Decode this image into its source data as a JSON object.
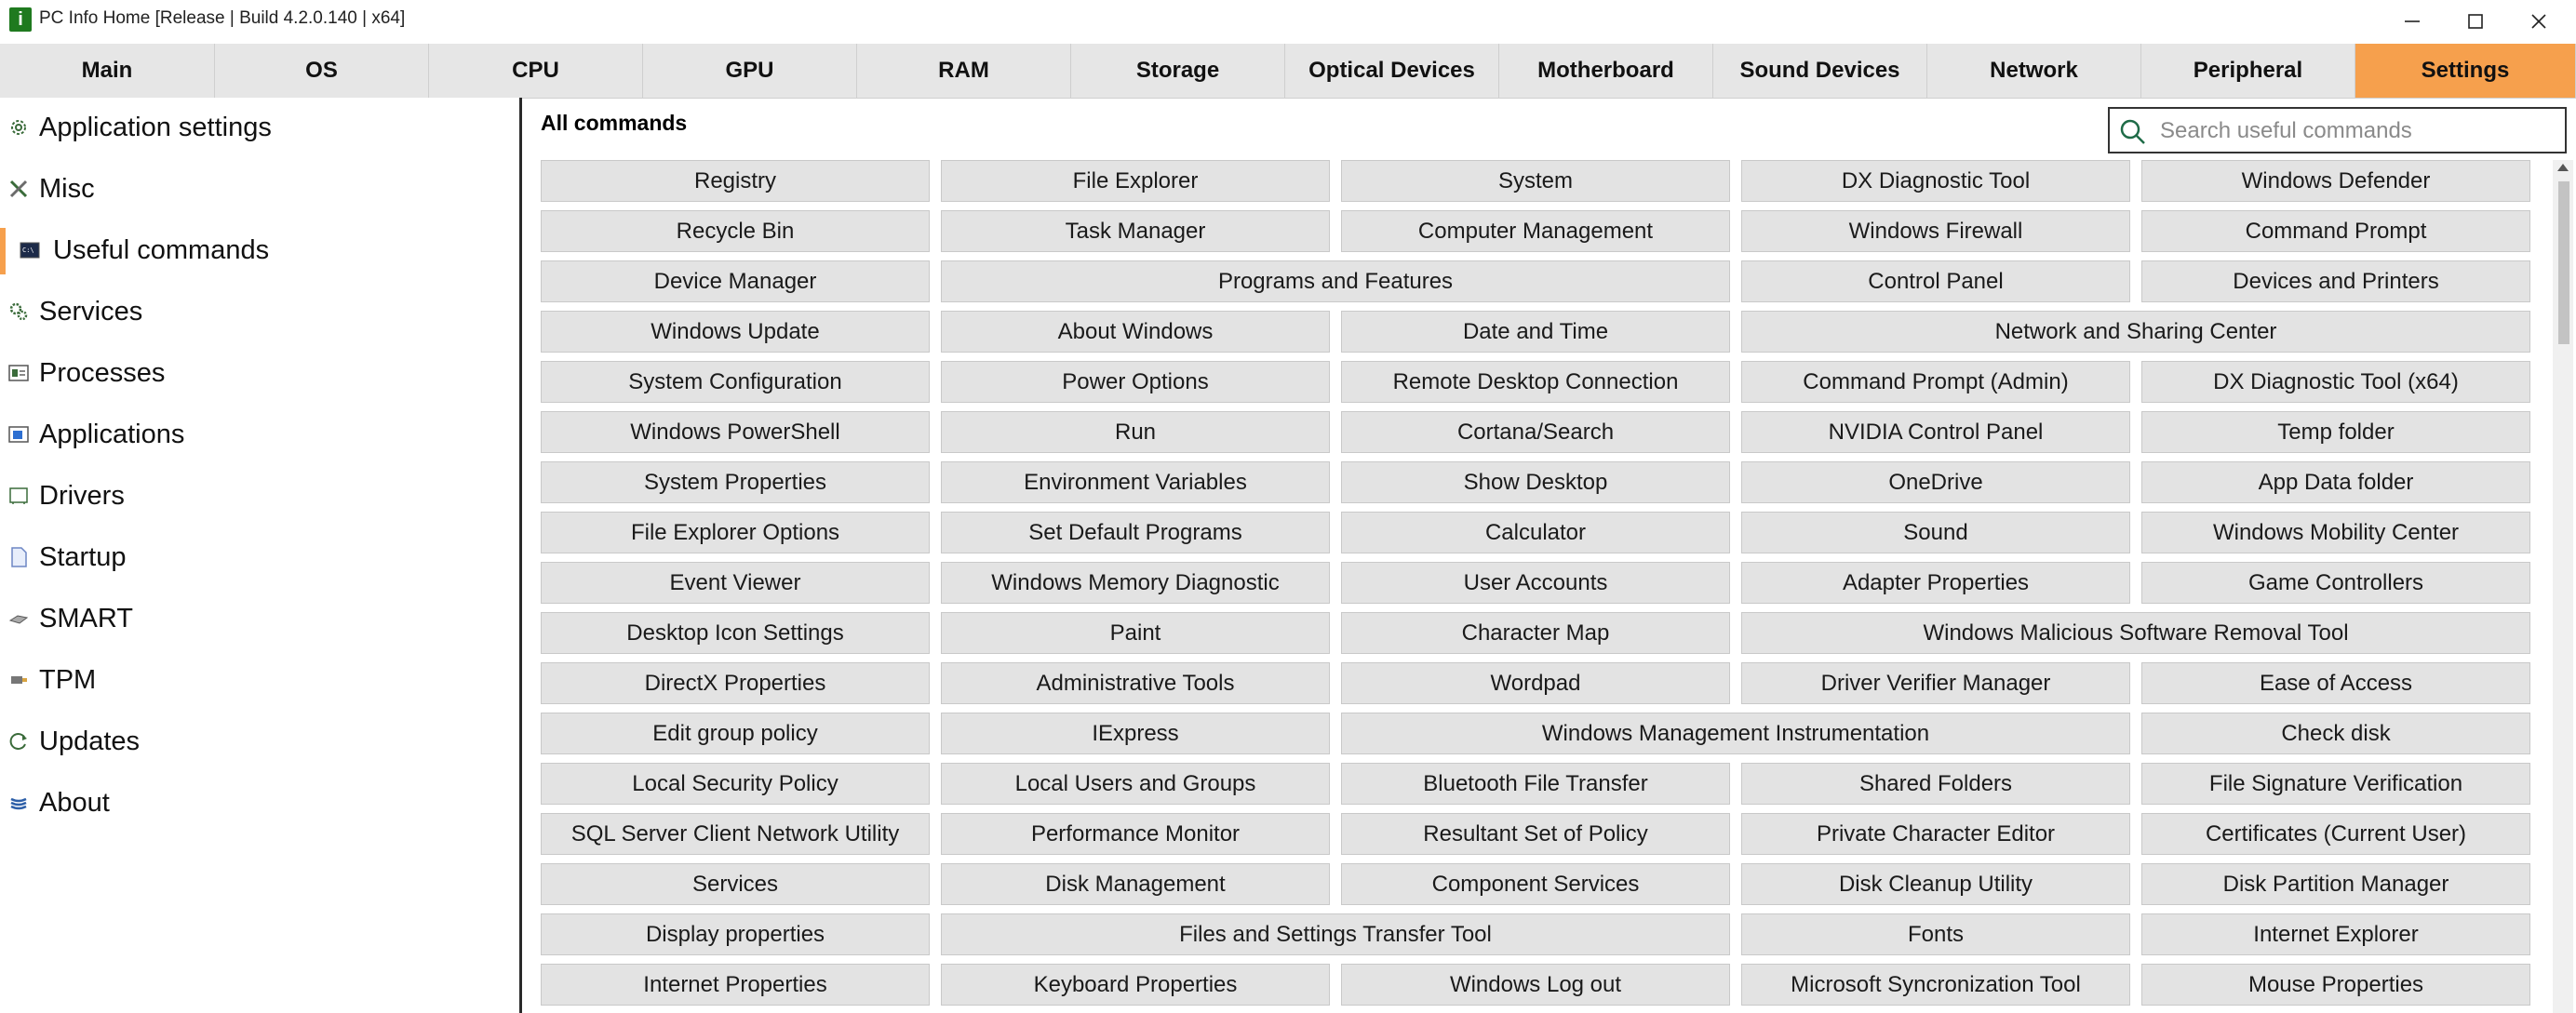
{
  "window": {
    "title": "PC Info Home [Release | Build 4.2.0.140 | x64]",
    "app_icon_letter": "i",
    "controls": [
      "minimize",
      "maximize",
      "close"
    ]
  },
  "tabs": [
    {
      "label": "Main"
    },
    {
      "label": "OS"
    },
    {
      "label": "CPU"
    },
    {
      "label": "GPU"
    },
    {
      "label": "RAM"
    },
    {
      "label": "Storage"
    },
    {
      "label": "Optical Devices"
    },
    {
      "label": "Motherboard"
    },
    {
      "label": "Sound Devices"
    },
    {
      "label": "Network"
    },
    {
      "label": "Peripheral"
    },
    {
      "label": "Settings",
      "active": true
    }
  ],
  "sidebar": {
    "items": [
      {
        "label": "Application settings",
        "icon": "gear-icon"
      },
      {
        "label": "Misc",
        "icon": "tools-icon"
      },
      {
        "label": "Useful commands",
        "icon": "terminal-icon",
        "active": true
      },
      {
        "label": "Services",
        "icon": "services-gear-icon"
      },
      {
        "label": "Processes",
        "icon": "processes-icon"
      },
      {
        "label": "Applications",
        "icon": "application-window-icon"
      },
      {
        "label": "Drivers",
        "icon": "driver-icon"
      },
      {
        "label": "Startup",
        "icon": "startup-document-icon"
      },
      {
        "label": "SMART",
        "icon": "disk-drive-icon"
      },
      {
        "label": "TPM",
        "icon": "chip-icon"
      },
      {
        "label": "Updates",
        "icon": "refresh-icon"
      },
      {
        "label": "About",
        "icon": "about-stack-icon"
      }
    ]
  },
  "main": {
    "section_title": "All commands",
    "search_placeholder": "Search useful commands",
    "commands": [
      {
        "label": "Registry"
      },
      {
        "label": "File Explorer"
      },
      {
        "label": "System"
      },
      {
        "label": "DX Diagnostic Tool"
      },
      {
        "label": "Windows Defender"
      },
      {
        "label": "Recycle Bin"
      },
      {
        "label": "Task Manager"
      },
      {
        "label": "Computer Management"
      },
      {
        "label": "Windows Firewall"
      },
      {
        "label": "Command Prompt"
      },
      {
        "label": "Device Manager"
      },
      {
        "label": "Programs and Features",
        "wide": true
      },
      {
        "label": "Control Panel"
      },
      {
        "label": "Devices and Printers"
      },
      {
        "label": "Windows Update"
      },
      {
        "label": "About Windows"
      },
      {
        "label": "Date and Time"
      },
      {
        "label": "Network and Sharing Center",
        "wide": true
      },
      {
        "label": "System Configuration"
      },
      {
        "label": "Power Options"
      },
      {
        "label": "Remote Desktop Connection"
      },
      {
        "label": "Command Prompt (Admin)"
      },
      {
        "label": "DX Diagnostic Tool (x64)"
      },
      {
        "label": "Windows PowerShell"
      },
      {
        "label": "Run"
      },
      {
        "label": "Cortana/Search"
      },
      {
        "label": "NVIDIA Control Panel"
      },
      {
        "label": "Temp folder"
      },
      {
        "label": "System Properties"
      },
      {
        "label": "Environment Variables"
      },
      {
        "label": "Show Desktop"
      },
      {
        "label": "OneDrive"
      },
      {
        "label": "App Data folder"
      },
      {
        "label": "File Explorer Options"
      },
      {
        "label": "Set Default Programs"
      },
      {
        "label": "Calculator"
      },
      {
        "label": "Sound"
      },
      {
        "label": "Windows Mobility Center"
      },
      {
        "label": "Event Viewer"
      },
      {
        "label": "Windows Memory Diagnostic"
      },
      {
        "label": "User Accounts"
      },
      {
        "label": "Adapter Properties"
      },
      {
        "label": "Game Controllers"
      },
      {
        "label": "Desktop Icon Settings"
      },
      {
        "label": "Paint"
      },
      {
        "label": "Character Map"
      },
      {
        "label": "Windows Malicious Software Removal Tool",
        "wide": true
      },
      {
        "label": "DirectX Properties"
      },
      {
        "label": "Administrative Tools"
      },
      {
        "label": "Wordpad"
      },
      {
        "label": "Driver Verifier Manager"
      },
      {
        "label": "Ease of Access"
      },
      {
        "label": "Edit group policy"
      },
      {
        "label": "IExpress"
      },
      {
        "label": "Windows Management Instrumentation",
        "wide": true
      },
      {
        "label": "Check disk"
      },
      {
        "label": "Local Security Policy"
      },
      {
        "label": "Local Users and Groups"
      },
      {
        "label": "Bluetooth File Transfer"
      },
      {
        "label": "Shared Folders"
      },
      {
        "label": "File Signature Verification"
      },
      {
        "label": "SQL Server Client Network Utility"
      },
      {
        "label": "Performance Monitor"
      },
      {
        "label": "Resultant Set of Policy"
      },
      {
        "label": "Private Character Editor"
      },
      {
        "label": "Certificates (Current User)"
      },
      {
        "label": "Services"
      },
      {
        "label": "Disk Management"
      },
      {
        "label": "Component Services"
      },
      {
        "label": "Disk Cleanup Utility"
      },
      {
        "label": "Disk Partition Manager"
      },
      {
        "label": "Display properties"
      },
      {
        "label": "Files and Settings Transfer Tool",
        "wide": true
      },
      {
        "label": "Fonts"
      },
      {
        "label": "Internet Explorer"
      },
      {
        "label": "Internet Properties"
      },
      {
        "label": "Keyboard Properties"
      },
      {
        "label": "Windows Log out"
      },
      {
        "label": "Microsoft Syncronization Tool"
      },
      {
        "label": "Mouse Properties"
      }
    ]
  },
  "colors": {
    "accent": "#f6a04d",
    "tab_bar": "#e6e6e6",
    "command_button": "#e3e3e3",
    "app_icon": "#1f7a1f"
  }
}
